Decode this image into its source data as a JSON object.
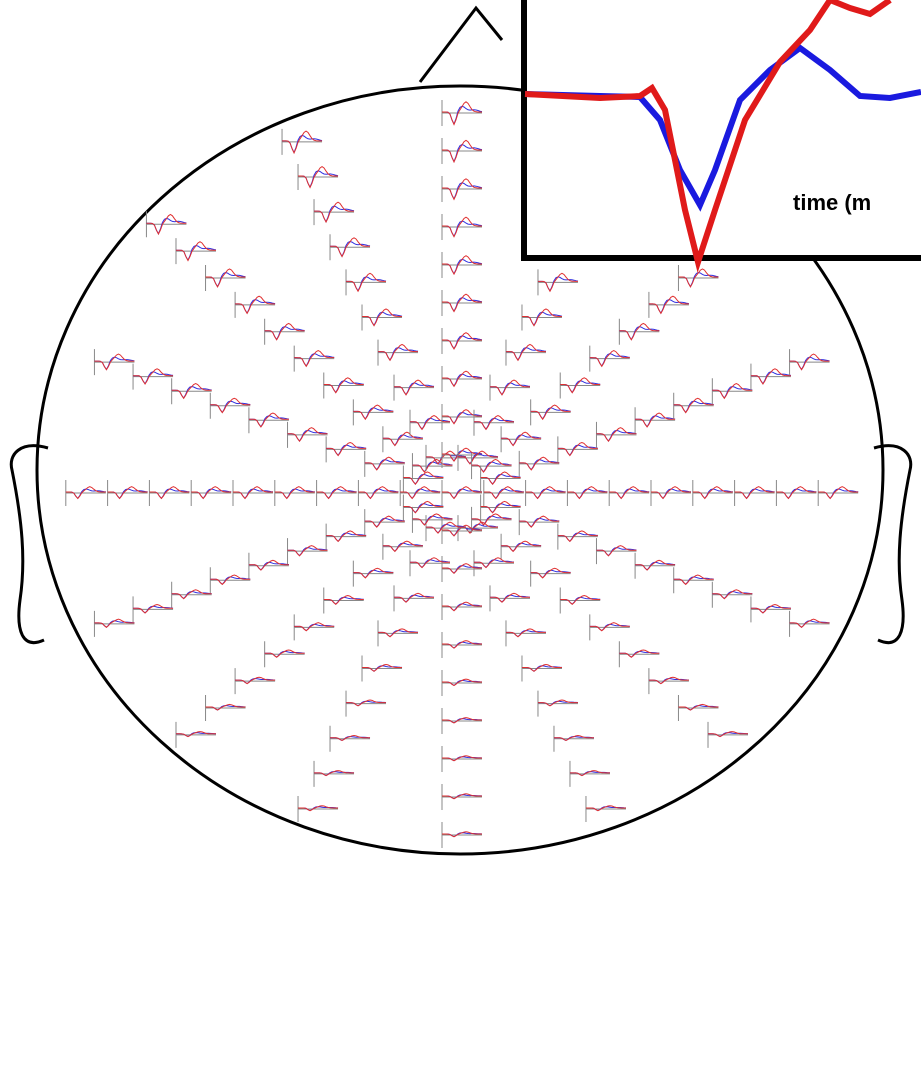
{
  "inset": {
    "axis_label": "time (m"
  }
}
